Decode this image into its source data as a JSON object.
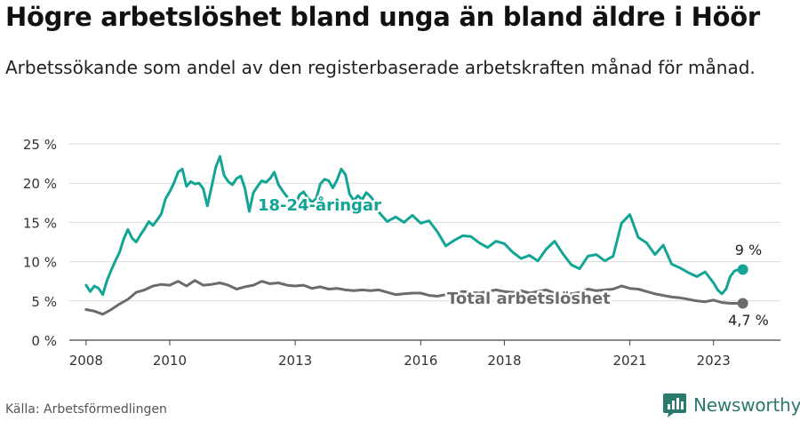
{
  "header": {
    "title": "Högre arbetslöshet bland unga än bland äldre i Höör",
    "subtitle": "Arbetssökande som andel av den registerbaserade arbetskraften månad för månad."
  },
  "footer": {
    "source": "Källa: Arbetsförmedlingen",
    "brand": "Newsworthy"
  },
  "colors": {
    "youth": "#12a595",
    "total": "#6b6b6b",
    "grid": "#d9d9d9",
    "brand": "#2b7a6c"
  },
  "chart_data": {
    "type": "line",
    "title": "Högre arbetslöshet bland unga än bland äldre i Höör",
    "xlabel": "",
    "ylabel": "",
    "xlim": [
      2007.6,
      2024.6
    ],
    "ylim": [
      0,
      25
    ],
    "grid": true,
    "y_ticks": [
      0,
      5,
      10,
      15,
      20,
      25
    ],
    "y_tick_labels": [
      "0 %",
      "5 %",
      "10 %",
      "15 %",
      "20 %",
      "25 %"
    ],
    "x_ticks": [
      2008,
      2010,
      2013,
      2016,
      2018,
      2021,
      2023
    ],
    "x_tick_labels": [
      "2008",
      "2010",
      "2013",
      "2016",
      "2018",
      "2021",
      "2023"
    ],
    "series": [
      {
        "name": "18-24-åringar",
        "label": "18-24-åringar",
        "end_label": "9 %",
        "x": [
          2008.0,
          2008.1,
          2008.2,
          2008.3,
          2008.4,
          2008.5,
          2008.6,
          2008.7,
          2008.8,
          2008.9,
          2009.0,
          2009.1,
          2009.2,
          2009.3,
          2009.4,
          2009.5,
          2009.6,
          2009.7,
          2009.8,
          2009.9,
          2010.0,
          2010.1,
          2010.2,
          2010.3,
          2010.4,
          2010.5,
          2010.6,
          2010.7,
          2010.8,
          2010.9,
          2011.0,
          2011.1,
          2011.2,
          2011.3,
          2011.4,
          2011.5,
          2011.6,
          2011.7,
          2011.8,
          2011.9,
          2012.0,
          2012.1,
          2012.2,
          2012.3,
          2012.4,
          2012.5,
          2012.6,
          2012.7,
          2012.8,
          2012.9,
          2013.0,
          2013.1,
          2013.2,
          2013.3,
          2013.4,
          2013.5,
          2013.6,
          2013.7,
          2013.8,
          2013.9,
          2014.0,
          2014.1,
          2014.2,
          2014.3,
          2014.4,
          2014.5,
          2014.6,
          2014.7,
          2014.8,
          2014.9,
          2015.0,
          2015.2,
          2015.4,
          2015.6,
          2015.8,
          2016.0,
          2016.2,
          2016.4,
          2016.6,
          2016.8,
          2017.0,
          2017.2,
          2017.4,
          2017.6,
          2017.8,
          2018.0,
          2018.2,
          2018.4,
          2018.6,
          2018.8,
          2019.0,
          2019.2,
          2019.4,
          2019.6,
          2019.8,
          2020.0,
          2020.2,
          2020.4,
          2020.6,
          2020.8,
          2021.0,
          2021.2,
          2021.4,
          2021.6,
          2021.8,
          2022.0,
          2022.2,
          2022.4,
          2022.6,
          2022.8,
          2023.0,
          2023.1,
          2023.2,
          2023.3,
          2023.4,
          2023.5,
          2023.6,
          2023.7
        ],
        "y": [
          7.0,
          6.2,
          6.9,
          6.6,
          5.8,
          7.6,
          8.9,
          10.1,
          11.2,
          12.9,
          14.1,
          13.0,
          12.5,
          13.4,
          14.2,
          15.1,
          14.6,
          15.3,
          16.1,
          18.0,
          18.9,
          20.0,
          21.4,
          21.8,
          19.6,
          20.2,
          19.9,
          20.0,
          19.3,
          17.1,
          19.5,
          22.0,
          23.4,
          21.0,
          20.2,
          19.8,
          20.6,
          20.9,
          19.3,
          16.4,
          18.8,
          19.6,
          20.3,
          20.1,
          20.6,
          21.4,
          19.8,
          19.0,
          18.3,
          17.3,
          17.2,
          18.5,
          18.9,
          18.1,
          17.6,
          18.0,
          19.9,
          20.5,
          20.3,
          19.4,
          20.4,
          21.8,
          21.1,
          18.6,
          17.8,
          18.4,
          17.9,
          18.8,
          18.3,
          17.6,
          16.3,
          15.1,
          15.7,
          15.0,
          15.9,
          14.9,
          15.2,
          13.8,
          12.0,
          12.7,
          13.3,
          13.2,
          12.4,
          11.8,
          12.6,
          12.3,
          11.2,
          10.4,
          10.8,
          10.1,
          11.6,
          12.6,
          11.0,
          9.6,
          9.1,
          10.7,
          10.9,
          10.1,
          10.7,
          14.9,
          16.0,
          13.1,
          12.4,
          10.9,
          12.1,
          9.7,
          9.2,
          8.6,
          8.1,
          8.7,
          7.3,
          6.4,
          5.9,
          6.5,
          8.1,
          8.8,
          9.0,
          9.0
        ]
      },
      {
        "name": "Total arbetslöshet",
        "label": "Total arbetslöshet",
        "end_label": "4,7 %",
        "x": [
          2008.0,
          2008.2,
          2008.4,
          2008.6,
          2008.8,
          2009.0,
          2009.2,
          2009.4,
          2009.6,
          2009.8,
          2010.0,
          2010.2,
          2010.4,
          2010.6,
          2010.8,
          2011.0,
          2011.2,
          2011.4,
          2011.6,
          2011.8,
          2012.0,
          2012.2,
          2012.4,
          2012.6,
          2012.8,
          2013.0,
          2013.2,
          2013.4,
          2013.6,
          2013.8,
          2014.0,
          2014.2,
          2014.4,
          2014.6,
          2014.8,
          2015.0,
          2015.2,
          2015.4,
          2015.6,
          2015.8,
          2016.0,
          2016.2,
          2016.4,
          2016.6,
          2016.8,
          2017.0,
          2017.2,
          2017.4,
          2017.6,
          2017.8,
          2018.0,
          2018.2,
          2018.4,
          2018.6,
          2018.8,
          2019.0,
          2019.2,
          2019.4,
          2019.6,
          2019.8,
          2020.0,
          2020.2,
          2020.4,
          2020.6,
          2020.8,
          2021.0,
          2021.2,
          2021.4,
          2021.6,
          2021.8,
          2022.0,
          2022.2,
          2022.4,
          2022.6,
          2022.8,
          2023.0,
          2023.2,
          2023.4,
          2023.7
        ],
        "y": [
          3.9,
          3.7,
          3.3,
          3.9,
          4.6,
          5.2,
          6.1,
          6.4,
          6.9,
          7.1,
          7.0,
          7.5,
          6.9,
          7.6,
          7.0,
          7.1,
          7.3,
          7.0,
          6.5,
          6.8,
          7.0,
          7.5,
          7.2,
          7.3,
          7.0,
          6.9,
          7.0,
          6.6,
          6.8,
          6.5,
          6.6,
          6.4,
          6.3,
          6.4,
          6.3,
          6.4,
          6.1,
          5.8,
          5.9,
          6.0,
          6.0,
          5.7,
          5.6,
          5.8,
          5.9,
          6.2,
          6.1,
          6.0,
          6.2,
          6.4,
          6.2,
          6.1,
          6.3,
          6.0,
          6.2,
          6.4,
          6.0,
          5.8,
          5.9,
          6.1,
          6.5,
          6.3,
          6.4,
          6.5,
          6.9,
          6.6,
          6.5,
          6.2,
          5.9,
          5.7,
          5.5,
          5.4,
          5.2,
          5.0,
          4.9,
          5.1,
          4.8,
          4.7,
          4.7
        ]
      }
    ]
  }
}
